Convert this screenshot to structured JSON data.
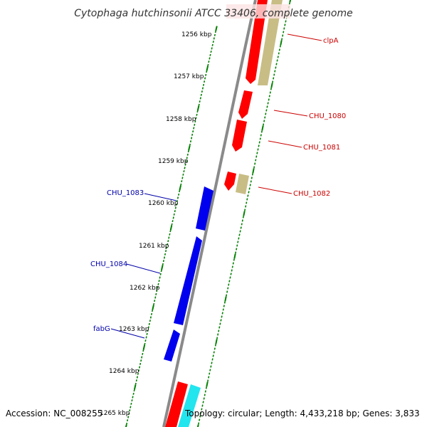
{
  "title": "Cytophaga hutchinsonii ATCC 33406, complete genome",
  "colors": {
    "backbone": "#8a8a8a",
    "forward": "#ff0000",
    "forward_alt": "#c8bd85",
    "reverse": "#0000ee",
    "reverse_alt": "#22e5ee",
    "tick": "#008000",
    "label_forward": "#cc0000",
    "label_reverse": "#0000aa"
  },
  "ruler_labels": [
    "1256 kbp",
    "1257 kbp",
    "1258 kbp",
    "1259 kbp",
    "1260 kbp",
    "1261 kbp",
    "1262 kbp",
    "1263 kbp",
    "1264 kbp",
    "1265 kbp"
  ],
  "gene_labels": [
    "clpA",
    "CHU_1080",
    "CHU_1081",
    "CHU_1082",
    "CHU_1083",
    "CHU_1084",
    "fabG"
  ],
  "footer": {
    "accession": "Accession: NC_008255",
    "topology": "Topology: circular; Length: 4,433,218 bp; Genes: 3,833"
  }
}
